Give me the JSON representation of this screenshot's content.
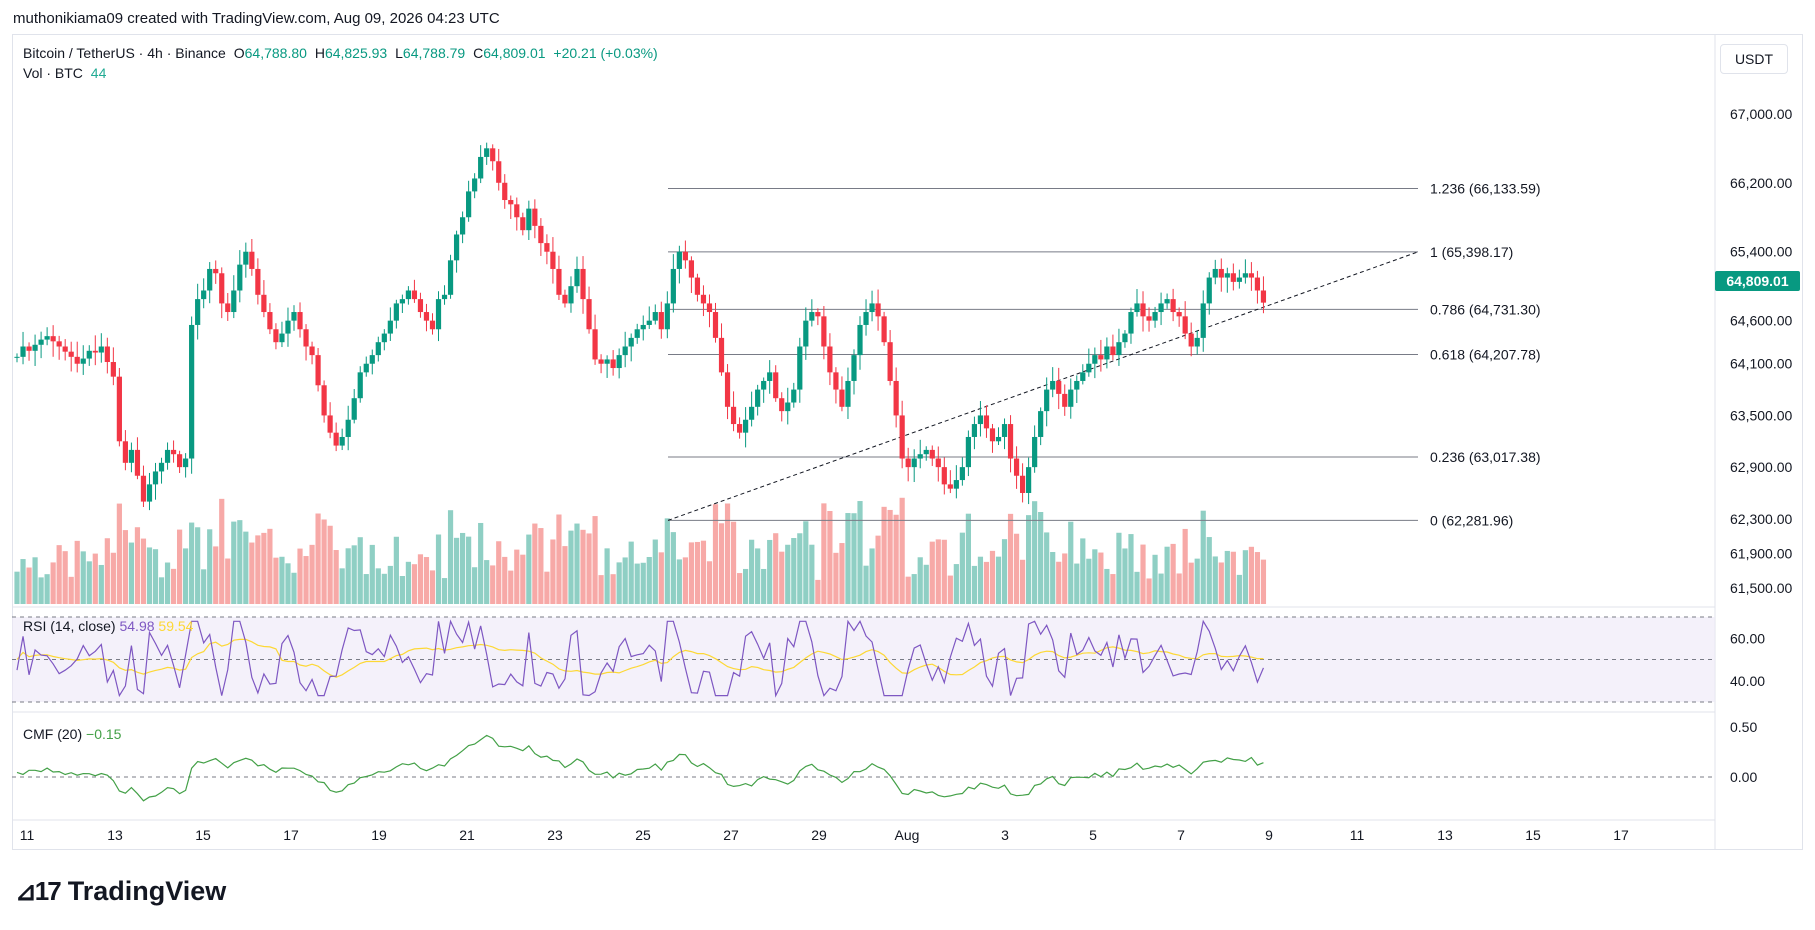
{
  "credit": "muthonikiama09 created with TradingView.com, Aug 09, 2026 04:23 UTC",
  "legend": {
    "symbol": "Bitcoin / TetherUS · 4h · Binance",
    "open_label": "O",
    "open": "64,788.80",
    "high_label": "H",
    "high": "64,825.93",
    "low_label": "L",
    "low": "64,788.79",
    "close_label": "C",
    "close": "64,809.01",
    "change": "+20.21 (+0.03%)",
    "vol_label": "Vol · BTC",
    "vol_value": "44"
  },
  "currency": "USDT",
  "last_price": "64,809.01",
  "price_axis": [
    "67,000.00",
    "66,200.00",
    "65,400.00",
    "64,600.00",
    "64,100.00",
    "63,500.00",
    "62,900.00",
    "62,300.00",
    "61,900.00",
    "61,500.00"
  ],
  "fib_levels": [
    {
      "label": "1.236 (66,133.59)",
      "ratio": 1.236,
      "price": 66133.59
    },
    {
      "label": "1 (65,398.17)",
      "ratio": 1,
      "price": 65398.17
    },
    {
      "label": "0.786 (64,731.30)",
      "ratio": 0.786,
      "price": 64731.3
    },
    {
      "label": "0.618 (64,207.78)",
      "ratio": 0.618,
      "price": 64207.78
    },
    {
      "label": "0.236 (63,017.38)",
      "ratio": 0.236,
      "price": 63017.38
    },
    {
      "label": "0 (62,281.96)",
      "ratio": 0,
      "price": 62281.96
    }
  ],
  "rsi": {
    "label": "RSI (14, close)",
    "value": "54.98",
    "ma": "59.54",
    "axis": [
      "60.00",
      "40.00"
    ]
  },
  "cmf": {
    "label": "CMF (20)",
    "value": "−0.15",
    "axis": [
      "0.50",
      "0.00"
    ]
  },
  "time_axis": [
    "11",
    "13",
    "15",
    "17",
    "19",
    "21",
    "23",
    "25",
    "27",
    "29",
    "Aug",
    "3",
    "5",
    "7",
    "9",
    "11",
    "13",
    "15",
    "17"
  ],
  "brand": "TradingView",
  "colors": {
    "up": "#089981",
    "down": "#f23645",
    "vol_up": "#8fcfc4",
    "vol_down": "#f7a9a7",
    "rsi": "#7e57c2",
    "rsi_ma": "#fdd835",
    "cmf": "#43a047"
  },
  "chart_data": {
    "type": "candlestick",
    "interval": "4h",
    "series_price_path": [
      64180,
      64300,
      64250,
      64320,
      64380,
      64420,
      64360,
      64300,
      64240,
      64180,
      64100,
      64160,
      64250,
      64230,
      64300,
      64120,
      63950,
      63200,
      62950,
      63100,
      62800,
      62500,
      62700,
      62850,
      62950,
      63100,
      63050,
      62900,
      63000,
      64550,
      64850,
      64950,
      65200,
      65150,
      64800,
      64700,
      64950,
      65250,
      65400,
      65200,
      64900,
      64700,
      64500,
      64350,
      64450,
      64600,
      64700,
      64500,
      64300,
      64200,
      63850,
      63500,
      63300,
      63150,
      63250,
      63450,
      63700,
      64000,
      64100,
      64200,
      64350,
      64450,
      64600,
      64800,
      64850,
      64950,
      64850,
      64700,
      64600,
      64500,
      64850,
      64900,
      65300,
      65600,
      65800,
      66100,
      66250,
      66500,
      66600,
      66450,
      66200,
      66000,
      65950,
      65800,
      65650,
      65900,
      65700,
      65500,
      65400,
      65200,
      64900,
      64800,
      65000,
      65200,
      64850,
      64500,
      64150,
      64100,
      64150,
      64050,
      64200,
      64300,
      64400,
      64500,
      64550,
      64600,
      64700,
      64500,
      64800,
      65200,
      65400,
      65300,
      65100,
      64900,
      64800,
      64700,
      64400,
      64000,
      63600,
      63400,
      63300,
      63450,
      63600,
      63800,
      63900,
      64000,
      63700,
      63550,
      63650,
      63800,
      64300,
      64600,
      64700,
      64650,
      64300,
      64000,
      63800,
      63600,
      63900,
      64200,
      64550,
      64700,
      64800,
      64650,
      64350,
      63900,
      63500,
      63000,
      62900,
      63000,
      63050,
      63100,
      63000,
      62900,
      62700,
      62650,
      62750,
      62900,
      63250,
      63400,
      63500,
      63350,
      63200,
      63250,
      63400,
      63000,
      62800,
      62600,
      62900,
      63250,
      63550,
      63800,
      63900,
      63750,
      63600,
      63800,
      63900,
      64000,
      64100,
      64200,
      64150,
      64300,
      64200,
      64350,
      64450,
      64700,
      64800,
      64650,
      64600,
      64700,
      64800,
      64850,
      64700,
      64650,
      64450,
      64300,
      64400,
      64800,
      65100,
      65200,
      65100,
      65150,
      65050,
      65100,
      65150,
      65100,
      64950,
      64809
    ],
    "ylim": [
      61300,
      67300
    ]
  }
}
